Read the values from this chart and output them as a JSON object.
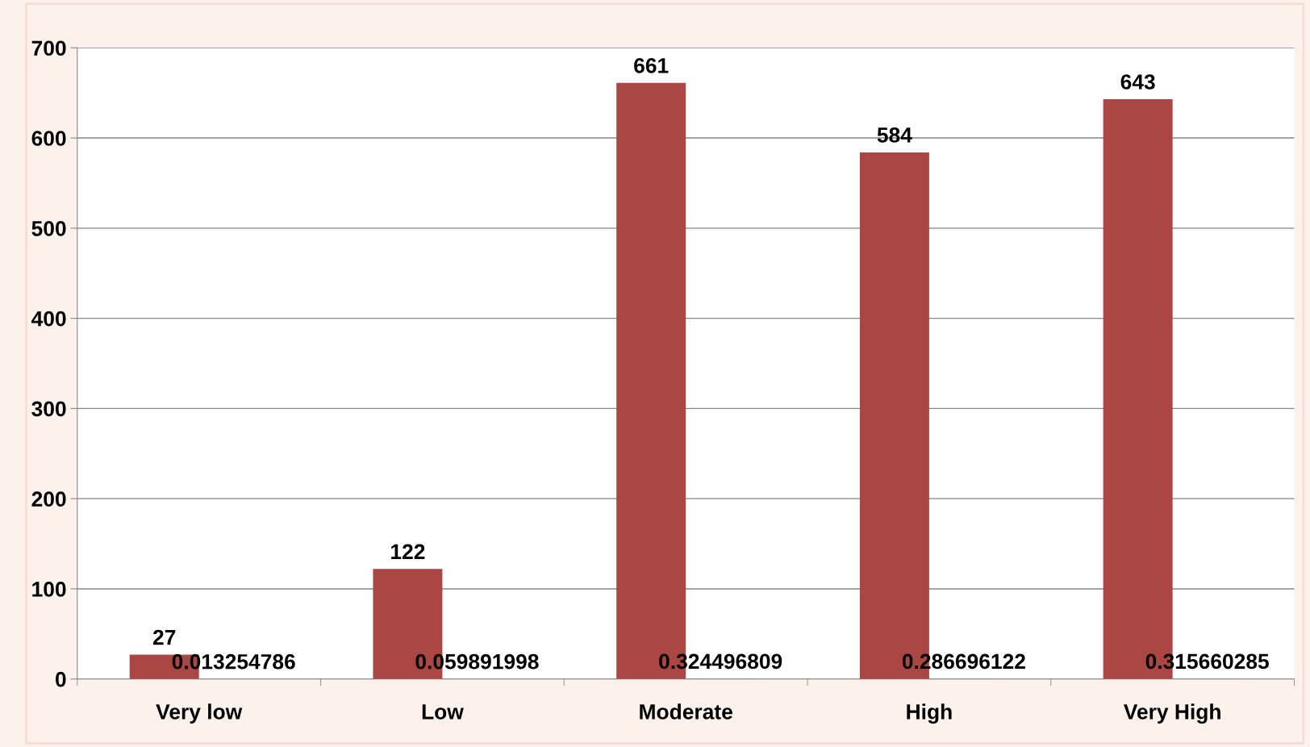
{
  "chart_data": {
    "type": "bar",
    "categories": [
      "Very low",
      "Low",
      "Moderate",
      "High",
      "Very High"
    ],
    "series": [
      {
        "color": "#aa4644",
        "values": [
          27,
          122,
          661,
          584,
          643
        ]
      },
      {
        "color": "#4f81bd",
        "values": [
          0.013254786,
          0.059891998,
          0.324496809,
          0.286696122,
          0.315660285
        ]
      }
    ],
    "ylim": [
      0,
      700
    ],
    "yticks": [
      0,
      100,
      200,
      300,
      400,
      500,
      600,
      700
    ],
    "grid": "y",
    "data_labels": true,
    "legend": false
  }
}
